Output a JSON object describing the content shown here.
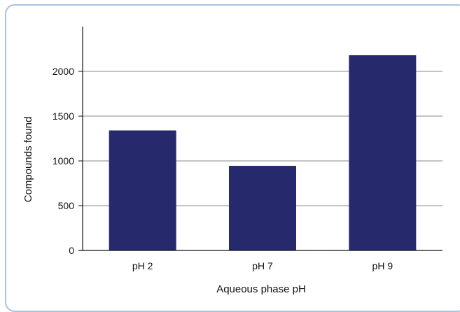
{
  "chart_data": {
    "type": "bar",
    "title": "",
    "xlabel": "Aqueous phase pH",
    "ylabel": "Compounds found",
    "categories": [
      "pH 2",
      "pH 7",
      "pH 9"
    ],
    "values": [
      1340,
      945,
      2180
    ],
    "ylim": [
      0,
      2500
    ],
    "yticks": [
      0,
      500,
      1000,
      1500,
      2000
    ],
    "grid": true,
    "legend": "none",
    "bar_color": "#262a6c",
    "grid_color": "#8a8a8a",
    "border_color": "#a9c3e2"
  }
}
